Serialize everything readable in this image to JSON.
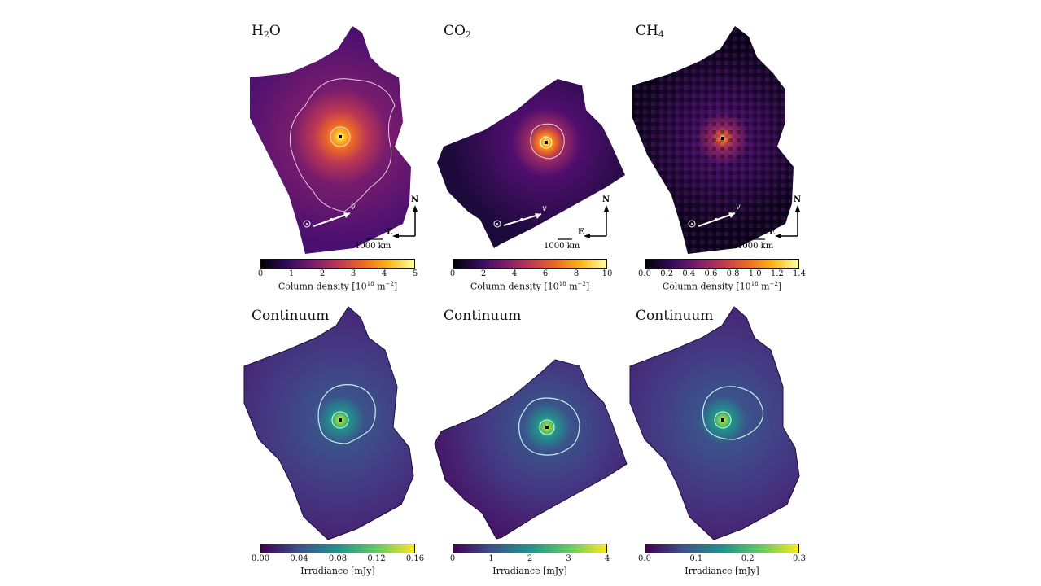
{
  "top_panels": [
    {
      "title_main": "H",
      "title_sub": "2",
      "title_tail": "O",
      "cbar_ticks": [
        "0",
        "1",
        "2",
        "3",
        "4",
        "5"
      ],
      "cbar_label_pre": "Column density [10",
      "cbar_label_sup": "18",
      "cbar_label_post": " m",
      "cbar_label_sup2": "−2",
      "cbar_label_end": "]",
      "scale": "1000 km",
      "north": "N",
      "east": "E",
      "velocity": "v"
    },
    {
      "title_main": "CO",
      "title_sub": "2",
      "title_tail": "",
      "cbar_ticks": [
        "0",
        "2",
        "4",
        "6",
        "8",
        "10"
      ],
      "cbar_label_pre": "Column density [10",
      "cbar_label_sup": "18",
      "cbar_label_post": " m",
      "cbar_label_sup2": "−2",
      "cbar_label_end": "]",
      "scale": "1000 km",
      "north": "N",
      "east": "E",
      "velocity": "v"
    },
    {
      "title_main": "CH",
      "title_sub": "4",
      "title_tail": "",
      "cbar_ticks": [
        "0.0",
        "0.2",
        "0.4",
        "0.6",
        "0.8",
        "1.0",
        "1.2",
        "1.4"
      ],
      "cbar_label_pre": "Column density [10",
      "cbar_label_sup": "18",
      "cbar_label_post": " m",
      "cbar_label_sup2": "−2",
      "cbar_label_end": "]",
      "scale": "1000 km",
      "north": "N",
      "east": "E",
      "velocity": "v"
    }
  ],
  "bottom_panels": [
    {
      "title": "Continuum",
      "cbar_ticks": [
        "0.00",
        "0.04",
        "0.08",
        "0.12",
        "0.16"
      ],
      "cbar_label": "Irradiance [mJy]"
    },
    {
      "title": "Continuum",
      "cbar_ticks": [
        "0",
        "1",
        "2",
        "3",
        "4"
      ],
      "cbar_label": "Irradiance [mJy]"
    },
    {
      "title": "Continuum",
      "cbar_ticks": [
        "0.0",
        "0.1",
        "0.2",
        "0.3"
      ],
      "cbar_label": "Irradiance [mJy]"
    }
  ],
  "colormaps": {
    "inferno": [
      "#000004",
      "#320a5e",
      "#781c6d",
      "#bc3754",
      "#ed6925",
      "#fbb61a",
      "#fcffa4"
    ],
    "viridis": [
      "#440154",
      "#3b528b",
      "#21918c",
      "#5ec962",
      "#fde725"
    ]
  }
}
